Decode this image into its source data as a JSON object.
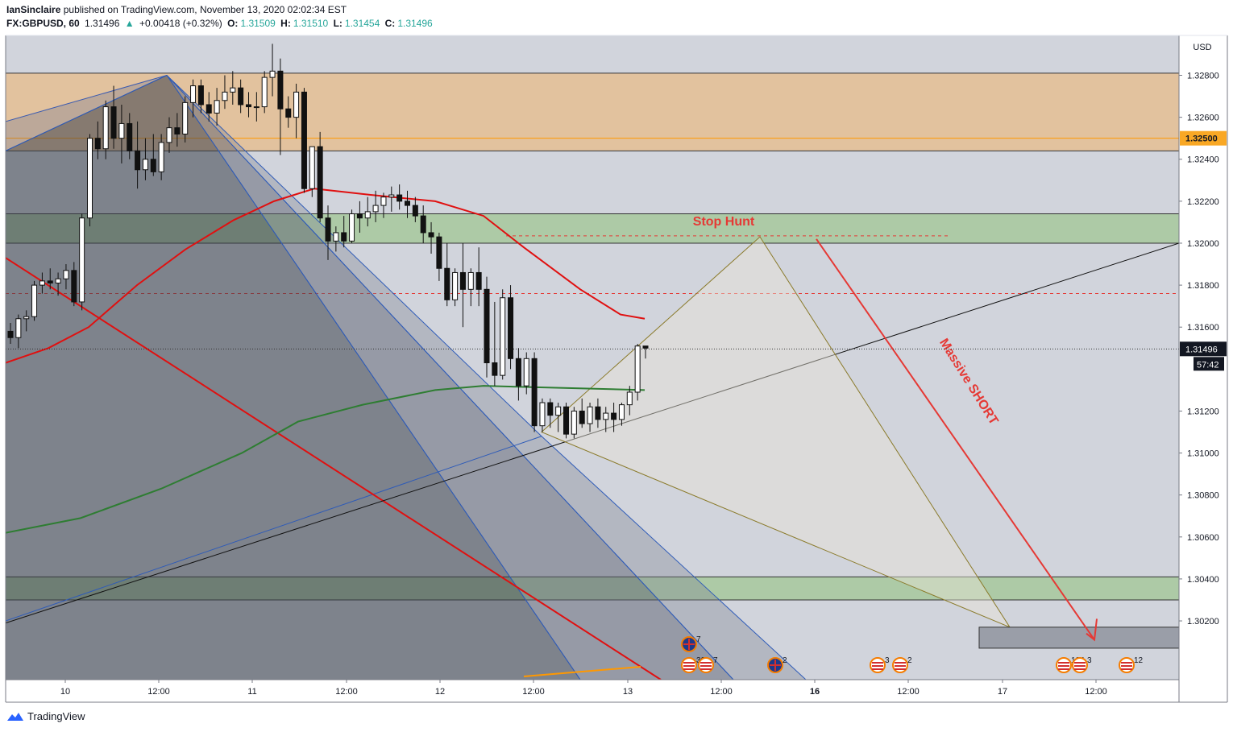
{
  "header": {
    "author": "IanSinclaire",
    "published_text": "published on TradingView.com, November 13, 2020 02:02:34 EST",
    "symbol": "FX:GBPUSD, 60",
    "last": "1.31496",
    "change_arrow": "▲",
    "change": "+0.00418 (+0.32%)",
    "o_label": "O:",
    "o_value": "1.31509",
    "h_label": "H:",
    "h_value": "1.31510",
    "l_label": "L:",
    "l_value": "1.31454",
    "c_label": "C:",
    "c_value": "1.31496"
  },
  "footer": {
    "brand": "TradingView"
  },
  "colors": {
    "plot_bg": "#d1d4dc",
    "resistance_zone": "#e3c097",
    "support_zone": "#a9c9a0",
    "sma_fast": "#e01010",
    "sma_slow": "#2e7d32",
    "annotation_red": "#e53935",
    "price_tag": "#f9a825",
    "last_tag": "#131722"
  },
  "chart_data": {
    "type": "candlestick",
    "currency_label": "USD",
    "y_ticks": [
      "1.32800",
      "1.32600",
      "1.32400",
      "1.32200",
      "1.32000",
      "1.31800",
      "1.31600",
      "1.31200",
      "1.31000",
      "1.30800",
      "1.30600",
      "1.30400",
      "1.30200"
    ],
    "y_range": [
      1.2992,
      1.3299
    ],
    "x_ticks": [
      "10",
      "12:00",
      "11",
      "12:00",
      "12",
      "12:00",
      "13",
      "12:00",
      "16",
      "12:00",
      "17",
      "12:00"
    ],
    "x_ticks_bold": [
      false,
      false,
      false,
      false,
      false,
      false,
      false,
      false,
      true,
      false,
      false,
      false
    ],
    "price_tags": {
      "level": "1.32500",
      "last": "1.31496",
      "countdown": "57:42"
    },
    "zones": [
      {
        "name": "resistance",
        "from": 1.3244,
        "to": 1.3281
      },
      {
        "name": "stop-hunt-zone",
        "from": 1.32,
        "to": 1.3214
      },
      {
        "name": "target-zone",
        "from": 1.303,
        "to": 1.3041
      }
    ],
    "levels": [
      {
        "name": "orange-line",
        "value": 1.325
      },
      {
        "name": "red-dashed",
        "value": 1.3176
      },
      {
        "name": "dotted-last",
        "value": 1.31496
      }
    ],
    "annotations": {
      "stop_hunt": "Stop Hunt",
      "massive_short": "Massive SHORT"
    },
    "events": [
      {
        "count": "7",
        "flag": "uk"
      },
      {
        "count": "30",
        "flag": "us"
      },
      {
        "count": "7",
        "flag": "us"
      },
      {
        "count": "2",
        "flag": "uk"
      },
      {
        "count": "3",
        "flag": "us"
      },
      {
        "count": "2",
        "flag": "us"
      },
      {
        "count": "104",
        "flag": "us"
      },
      {
        "count": "3",
        "flag": "us"
      },
      {
        "count": "12",
        "flag": "us"
      }
    ],
    "candles": [
      [
        1.3158,
        1.3162,
        1.3152,
        1.3155
      ],
      [
        1.3155,
        1.3166,
        1.315,
        1.3164
      ],
      [
        1.3164,
        1.3168,
        1.3158,
        1.3165
      ],
      [
        1.3165,
        1.3182,
        1.3163,
        1.318
      ],
      [
        1.318,
        1.3186,
        1.3176,
        1.3182
      ],
      [
        1.3182,
        1.3188,
        1.3178,
        1.3181
      ],
      [
        1.3181,
        1.3186,
        1.3175,
        1.3183
      ],
      [
        1.3183,
        1.319,
        1.3178,
        1.3187
      ],
      [
        1.3187,
        1.3191,
        1.317,
        1.3172
      ],
      [
        1.3172,
        1.3214,
        1.3168,
        1.3212
      ],
      [
        1.3212,
        1.3252,
        1.3208,
        1.325
      ],
      [
        1.325,
        1.3258,
        1.324,
        1.3245
      ],
      [
        1.3245,
        1.3268,
        1.324,
        1.3265
      ],
      [
        1.3265,
        1.3275,
        1.3245,
        1.325
      ],
      [
        1.325,
        1.3266,
        1.3238,
        1.3257
      ],
      [
        1.3257,
        1.3262,
        1.324,
        1.3244
      ],
      [
        1.3244,
        1.3258,
        1.3226,
        1.3235
      ],
      [
        1.3235,
        1.325,
        1.323,
        1.324
      ],
      [
        1.324,
        1.3252,
        1.3232,
        1.3234
      ],
      [
        1.3234,
        1.3252,
        1.323,
        1.3248
      ],
      [
        1.3248,
        1.326,
        1.3243,
        1.3255
      ],
      [
        1.3255,
        1.3262,
        1.3246,
        1.3252
      ],
      [
        1.3252,
        1.327,
        1.3248,
        1.3267
      ],
      [
        1.3267,
        1.3278,
        1.326,
        1.3275
      ],
      [
        1.3275,
        1.3278,
        1.3262,
        1.3266
      ],
      [
        1.3266,
        1.3272,
        1.3258,
        1.3262
      ],
      [
        1.3262,
        1.3274,
        1.3256,
        1.3268
      ],
      [
        1.3268,
        1.328,
        1.3264,
        1.3272
      ],
      [
        1.3272,
        1.3282,
        1.3266,
        1.3274
      ],
      [
        1.3274,
        1.3278,
        1.3262,
        1.3266
      ],
      [
        1.3266,
        1.3272,
        1.326,
        1.3265
      ],
      [
        1.3265,
        1.3272,
        1.3258,
        1.3265
      ],
      [
        1.3265,
        1.3282,
        1.3262,
        1.3279
      ],
      [
        1.3279,
        1.3295,
        1.327,
        1.3282
      ],
      [
        1.3282,
        1.3288,
        1.3242,
        1.3264
      ],
      [
        1.3264,
        1.327,
        1.3255,
        1.326
      ],
      [
        1.326,
        1.3276,
        1.325,
        1.3272
      ],
      [
        1.3272,
        1.3274,
        1.3224,
        1.3226
      ],
      [
        1.3226,
        1.3246,
        1.3222,
        1.3246
      ],
      [
        1.3246,
        1.3253,
        1.321,
        1.3212
      ],
      [
        1.3212,
        1.3218,
        1.3192,
        1.3201
      ],
      [
        1.3201,
        1.3208,
        1.3196,
        1.3205
      ],
      [
        1.3205,
        1.3213,
        1.3198,
        1.3201
      ],
      [
        1.3201,
        1.3216,
        1.32,
        1.3214
      ],
      [
        1.3214,
        1.322,
        1.3205,
        1.3212
      ],
      [
        1.3212,
        1.3222,
        1.3208,
        1.3215
      ],
      [
        1.3215,
        1.3225,
        1.321,
        1.3218
      ],
      [
        1.3218,
        1.3224,
        1.3212,
        1.3222
      ],
      [
        1.3222,
        1.3227,
        1.3215,
        1.3223
      ],
      [
        1.3223,
        1.3228,
        1.3216,
        1.322
      ],
      [
        1.322,
        1.3225,
        1.3212,
        1.3218
      ],
      [
        1.3218,
        1.3222,
        1.321,
        1.3213
      ],
      [
        1.3213,
        1.3218,
        1.32,
        1.3205
      ],
      [
        1.3205,
        1.321,
        1.3195,
        1.3203
      ],
      [
        1.3203,
        1.3205,
        1.3182,
        1.3188
      ],
      [
        1.3188,
        1.32,
        1.317,
        1.3173
      ],
      [
        1.3173,
        1.3188,
        1.317,
        1.3186
      ],
      [
        1.3186,
        1.32,
        1.316,
        1.3178
      ],
      [
        1.3178,
        1.3188,
        1.317,
        1.3186
      ],
      [
        1.3186,
        1.3198,
        1.317,
        1.3178
      ],
      [
        1.3178,
        1.3184,
        1.3136,
        1.3143
      ],
      [
        1.3143,
        1.3172,
        1.3132,
        1.3137
      ],
      [
        1.3137,
        1.3178,
        1.3135,
        1.3174
      ],
      [
        1.3174,
        1.318,
        1.314,
        1.3145
      ],
      [
        1.3145,
        1.315,
        1.3125,
        1.3132
      ],
      [
        1.3132,
        1.3148,
        1.3128,
        1.3145
      ],
      [
        1.3145,
        1.3148,
        1.311,
        1.3113
      ],
      [
        1.3113,
        1.3126,
        1.311,
        1.3124
      ],
      [
        1.3124,
        1.3126,
        1.3112,
        1.3118
      ],
      [
        1.3118,
        1.3124,
        1.311,
        1.3122
      ],
      [
        1.3122,
        1.3124,
        1.3107,
        1.3109
      ],
      [
        1.3109,
        1.3122,
        1.3107,
        1.312
      ],
      [
        1.312,
        1.3126,
        1.3112,
        1.3114
      ],
      [
        1.3114,
        1.3124,
        1.311,
        1.3122
      ],
      [
        1.3122,
        1.3126,
        1.3112,
        1.3116
      ],
      [
        1.3116,
        1.3122,
        1.311,
        1.3119
      ],
      [
        1.3119,
        1.3124,
        1.311,
        1.3116
      ],
      [
        1.3116,
        1.3124,
        1.3113,
        1.3123
      ],
      [
        1.3123,
        1.3132,
        1.3118,
        1.3129
      ],
      [
        1.3129,
        1.3152,
        1.3125,
        1.3151
      ],
      [
        1.3151,
        1.3151,
        1.3145,
        1.315
      ]
    ]
  }
}
